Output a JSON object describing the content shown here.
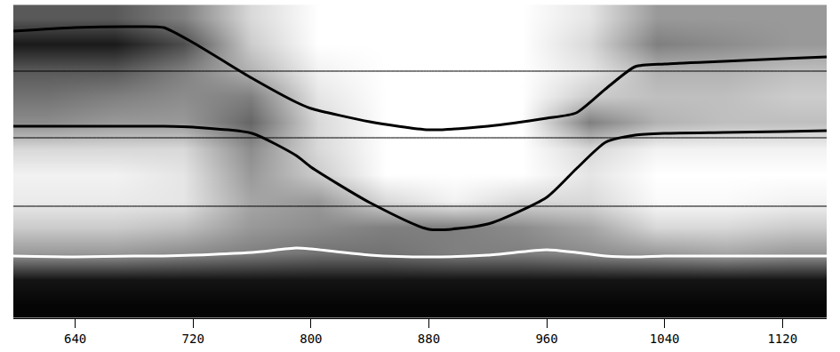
{
  "chart_data": {
    "type": "heatmap",
    "tick_labels": "x",
    "grid": false,
    "xlim": [
      598,
      1150
    ],
    "ylim": [
      0,
      353
    ],
    "xticks": [
      640,
      720,
      800,
      880,
      960,
      1040,
      1120
    ],
    "zlim": [
      0,
      1
    ],
    "cells": {
      "x": [
        621,
        667,
        713,
        759,
        805,
        851,
        897,
        943,
        989,
        1035,
        1081,
        1127
      ],
      "y": [
        15,
        44,
        74,
        103,
        132,
        162,
        191,
        221,
        250,
        279,
        309,
        338
      ],
      "z": [
        [
          0.02,
          0.02,
          0.02,
          0.02,
          0.02,
          0.02,
          0.02,
          0.02,
          0.02,
          0.02,
          0.02,
          0.02
        ],
        [
          0.08,
          0.08,
          0.08,
          0.08,
          0.08,
          0.08,
          0.08,
          0.08,
          0.08,
          0.08,
          0.08,
          0.08
        ],
        [
          0.6,
          0.6,
          0.55,
          0.5,
          0.45,
          0.45,
          0.5,
          0.5,
          0.55,
          0.6,
          0.65,
          0.6
        ],
        [
          0.8,
          0.8,
          0.75,
          0.6,
          0.55,
          0.5,
          0.5,
          0.55,
          0.65,
          0.85,
          0.85,
          0.8
        ],
        [
          0.92,
          0.92,
          0.9,
          0.65,
          0.6,
          0.85,
          0.95,
          0.85,
          0.85,
          0.98,
          0.98,
          0.95
        ],
        [
          0.95,
          0.95,
          0.9,
          0.6,
          0.8,
          1,
          1,
          1,
          0.9,
          1,
          1,
          1
        ],
        [
          0.85,
          0.85,
          0.85,
          0.55,
          0.85,
          1,
          1,
          1,
          0.85,
          0.95,
          0.95,
          0.95
        ],
        [
          0.55,
          0.6,
          0.6,
          0.4,
          0.85,
          1,
          1,
          1,
          0.5,
          0.7,
          0.75,
          0.75
        ],
        [
          0.45,
          0.5,
          0.55,
          0.5,
          0.9,
          1,
          1,
          1,
          0.8,
          0.75,
          0.75,
          0.8
        ],
        [
          0.35,
          0.35,
          0.5,
          0.7,
          0.95,
          1,
          1,
          1,
          0.9,
          0.7,
          0.7,
          0.75
        ],
        [
          0.1,
          0.1,
          0.3,
          0.8,
          1,
          1,
          1,
          1,
          0.85,
          0.5,
          0.55,
          0.6
        ],
        [
          0.35,
          0.35,
          0.5,
          0.85,
          1,
          1,
          1,
          1,
          0.9,
          0.6,
          0.6,
          0.6
        ]
      ]
    },
    "x": [
      598,
      640,
      680,
      700,
      720,
      760,
      790,
      800,
      840,
      880,
      920,
      960,
      980,
      1000,
      1020,
      1040,
      1080,
      1120,
      1150
    ],
    "series": [
      {
        "type": "line",
        "color": "#000000",
        "line_style": "thin",
        "values": [
          278,
          278,
          278,
          278,
          278,
          278,
          278,
          278,
          278,
          278,
          278,
          278,
          278,
          278,
          278,
          278,
          278,
          278,
          278
        ]
      },
      {
        "type": "line",
        "color": "#000000",
        "line_style": "thin",
        "values": [
          203,
          203,
          203,
          203,
          203,
          203,
          203,
          203,
          203,
          203,
          203,
          203,
          203,
          203,
          203,
          203,
          203,
          203,
          203
        ]
      },
      {
        "type": "line",
        "color": "#000000",
        "line_style": "thin",
        "values": [
          126,
          126,
          126,
          126,
          126,
          126,
          126,
          126,
          126,
          126,
          126,
          126,
          126,
          126,
          126,
          126,
          126,
          126,
          126
        ]
      },
      {
        "type": "line",
        "color": "#000000",
        "line_style": "solid",
        "values": [
          323,
          327,
          328,
          327,
          310,
          270,
          243,
          236,
          221,
          212,
          216,
          225,
          231,
          258,
          283,
          286,
          289,
          292,
          294
        ]
      },
      {
        "type": "line",
        "color": "#000000",
        "line_style": "solid",
        "values": [
          216,
          216,
          216,
          216,
          215,
          208,
          183,
          170,
          130,
          100,
          106,
          136,
          168,
          198,
          206,
          208,
          209,
          210,
          211
        ]
      },
      {
        "type": "line",
        "color": "#ffffff",
        "line_style": "solid",
        "values": [
          70,
          69,
          70,
          70,
          71,
          74,
          79,
          78,
          71,
          69,
          71,
          77,
          74,
          70,
          69,
          70,
          70,
          70,
          70
        ]
      }
    ]
  }
}
